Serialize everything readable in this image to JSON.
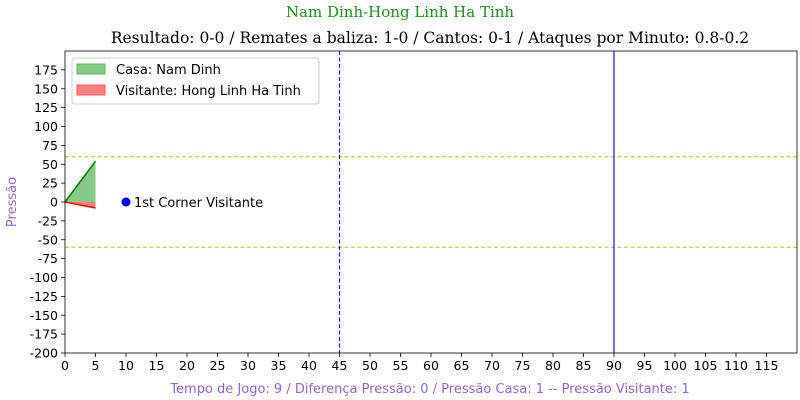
{
  "chart_data": {
    "type": "area",
    "suptitle": "Nam Dinh-Hong Linh Ha Tinh",
    "title": "Resultado: 0-0 / Remates a baliza: 1-0 / Cantos: 0-1 / Ataques por Minuto: 0.8-0.2",
    "xlabel": "Tempo de Jogo: 9 / Diferença Pressão: 0 / Pressão Casa: 1 -- Pressão Visitante: 1",
    "ylabel": "Pressão",
    "xlim": [
      0,
      120
    ],
    "ylim": [
      -200,
      200
    ],
    "xticks": [
      0,
      5,
      10,
      15,
      20,
      25,
      30,
      35,
      40,
      45,
      50,
      55,
      60,
      65,
      70,
      75,
      80,
      85,
      90,
      95,
      100,
      105,
      110,
      115
    ],
    "yticks": [
      -200,
      -175,
      -150,
      -125,
      -100,
      -75,
      -50,
      -25,
      0,
      25,
      50,
      75,
      100,
      125,
      150,
      175
    ],
    "series": [
      {
        "name": "Casa: Nam Dinh",
        "color": "#008000",
        "fill": "#5cb85c",
        "x": [
          0,
          5
        ],
        "values": [
          0,
          54
        ]
      },
      {
        "name": "Visitante: Hong Linh Ha Tinh",
        "color": "#ff0000",
        "fill": "#ff5555",
        "x": [
          0,
          5
        ],
        "values": [
          0,
          -8
        ]
      }
    ],
    "hlines": [
      60,
      -60
    ],
    "vlines": [
      {
        "x": 45,
        "style": "dashed"
      },
      {
        "x": 90,
        "style": "solid"
      }
    ],
    "annotations": [
      {
        "x": 10,
        "y": 0,
        "text": "1st Corner Visitante",
        "color": "#0000ff"
      }
    ],
    "legend_position": "top-left",
    "colors": {
      "suptitle": "#228b22",
      "axis_label": "#9467bd",
      "hline": "#bfbf00",
      "vline": "#0000ff"
    }
  }
}
